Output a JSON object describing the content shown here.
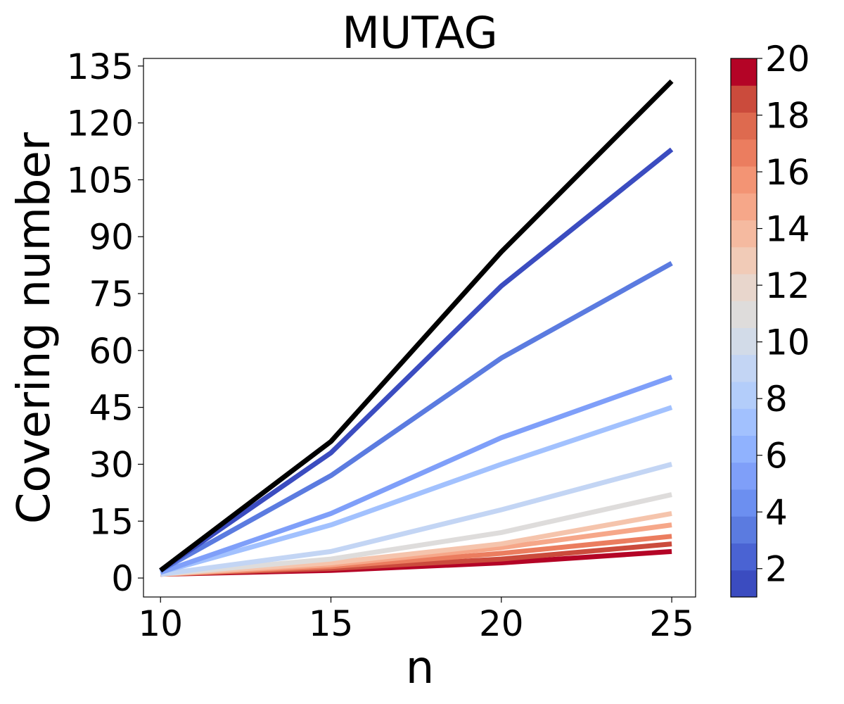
{
  "chart_data": {
    "type": "line",
    "title": "MUTAG",
    "xlabel": "n",
    "ylabel": "Covering number",
    "x": [
      10,
      15,
      20,
      25
    ],
    "xlim": [
      9.5,
      25.7
    ],
    "ylim": [
      -5,
      137
    ],
    "xticks": [
      "10",
      "15",
      "20",
      "25"
    ],
    "yticks": [
      "0",
      "15",
      "30",
      "45",
      "60",
      "75",
      "90",
      "105",
      "120",
      "135"
    ],
    "colorbar": {
      "range": [
        1,
        20
      ],
      "ticks": [
        "2",
        "4",
        "6",
        "8",
        "10",
        "12",
        "14",
        "16",
        "18",
        "20"
      ],
      "colors": [
        "#3b4cc0",
        "#4a63d3",
        "#5b7be0",
        "#6c8ff0",
        "#7f9ff9",
        "#90b2fe",
        "#a2c1fe",
        "#b3cdfa",
        "#c3d5f4",
        "#d2dbe8",
        "#dedcdb",
        "#e8d6cc",
        "#f1cbb7",
        "#f5baa0",
        "#f6a789",
        "#f39474",
        "#eb7d5f",
        "#de6a4f",
        "#cb4b3c",
        "#b40426"
      ]
    },
    "series": [
      {
        "color": "#000000",
        "values": [
          2,
          36,
          86,
          131
        ]
      },
      {
        "color": "#3b4cc0",
        "values": [
          2,
          33,
          77,
          113
        ]
      },
      {
        "color": "#5b7be0",
        "values": [
          2,
          27,
          58,
          83
        ]
      },
      {
        "color": "#7f9ff9",
        "values": [
          1.5,
          17,
          37,
          53
        ]
      },
      {
        "color": "#a2c1fe",
        "values": [
          1.5,
          14,
          30,
          45
        ]
      },
      {
        "color": "#c3d5f4",
        "values": [
          1,
          7,
          18,
          30
        ]
      },
      {
        "color": "#dedcdb",
        "values": [
          1,
          5,
          12,
          22
        ]
      },
      {
        "color": "#f5c4ac",
        "values": [
          1,
          4,
          9,
          17
        ]
      },
      {
        "color": "#f6a789",
        "values": [
          1,
          3.5,
          8,
          14
        ]
      },
      {
        "color": "#eb7d5f",
        "values": [
          1,
          3,
          6.5,
          11
        ]
      },
      {
        "color": "#cb4b3c",
        "values": [
          1,
          2.5,
          5,
          9
        ]
      },
      {
        "color": "#b40426",
        "values": [
          1,
          2,
          4,
          7
        ]
      }
    ]
  }
}
